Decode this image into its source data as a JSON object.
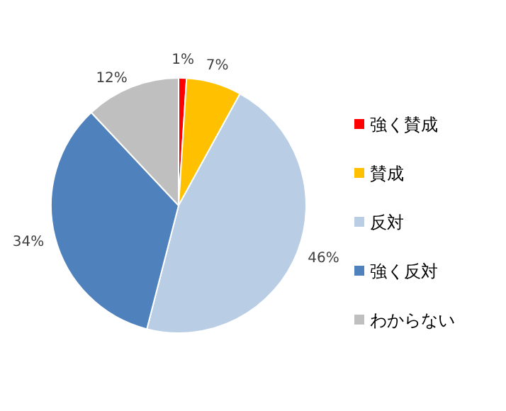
{
  "chart_data": {
    "type": "pie",
    "categories": [
      "強く賛成",
      "賛成",
      "反対",
      "強く反対",
      "わからない"
    ],
    "values": [
      1,
      7,
      46,
      34,
      12
    ],
    "value_labels": [
      "1%",
      "7%",
      "46%",
      "34%",
      "12%"
    ],
    "colors": [
      "#ff0000",
      "#ffc000",
      "#b9cde5",
      "#4f81bd",
      "#bfbfbf"
    ],
    "legend": "right"
  }
}
